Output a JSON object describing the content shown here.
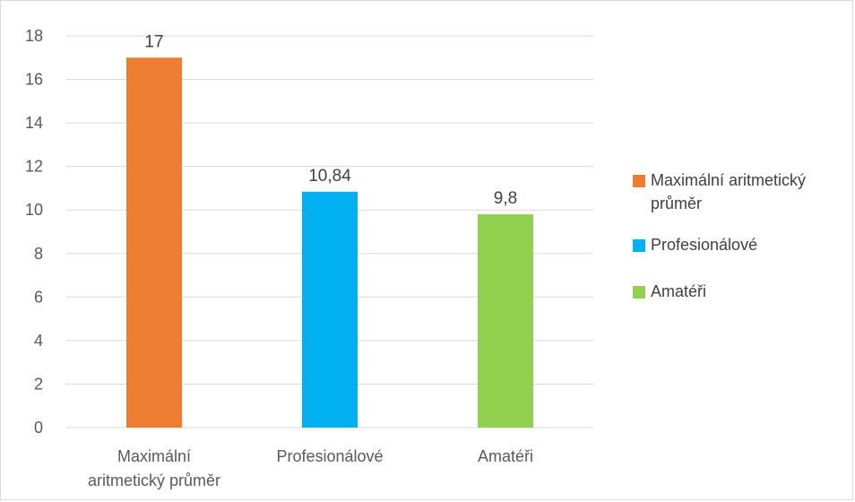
{
  "chart_data": {
    "type": "bar",
    "categories": [
      "Maximální aritmetický průměr",
      "Profesionálové",
      "Amatéři"
    ],
    "category_labels": [
      [
        "Maximální",
        "aritmetický průměr"
      ],
      [
        "Profesionálové"
      ],
      [
        "Amatéři"
      ]
    ],
    "values": [
      17,
      10.84,
      9.8
    ],
    "value_labels": [
      "17",
      "10,84",
      "9,8"
    ],
    "colors": [
      "#ed7d31",
      "#00b0f0",
      "#92d050"
    ],
    "ylim": [
      0,
      18
    ],
    "yticks": [
      0,
      2,
      4,
      6,
      8,
      10,
      12,
      14,
      16,
      18
    ],
    "grid": true,
    "legend_position": "right",
    "legend": [
      {
        "label_lines": [
          "Maximální aritmetický",
          "průměr"
        ],
        "color": "#ed7d31"
      },
      {
        "label_lines": [
          "Profesionálové"
        ],
        "color": "#00b0f0"
      },
      {
        "label_lines": [
          "Amatéři"
        ],
        "color": "#92d050"
      }
    ]
  }
}
